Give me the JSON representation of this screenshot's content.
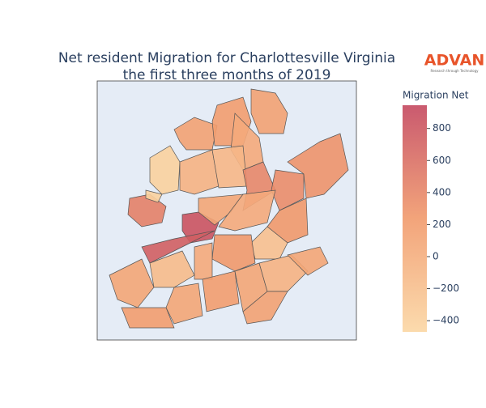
{
  "chart_data": {
    "type": "choropleth",
    "title": "Net resident Migration for Charlottesville Virginia",
    "subtitle": "the first three months of 2019",
    "colorbar_title": "Migration Net",
    "logo": "ADVAN",
    "logo_tagline": "Research through Technology",
    "colorscale": [
      "#fbd7a4",
      "#f19a6c",
      "#c4485f"
    ],
    "zlim": [
      -470,
      945
    ],
    "zticks": [
      {
        "value": -400,
        "label": "−400"
      },
      {
        "value": -200,
        "label": "−200"
      },
      0,
      200,
      400,
      600,
      800
    ],
    "values": [
      -400,
      150,
      200,
      150,
      50,
      -50,
      -100,
      400,
      350,
      300,
      450,
      -400,
      850,
      750,
      100,
      50,
      250,
      -200,
      250,
      -150,
      100,
      50,
      100,
      200,
      100,
      -50,
      150,
      200,
      100
    ]
  }
}
